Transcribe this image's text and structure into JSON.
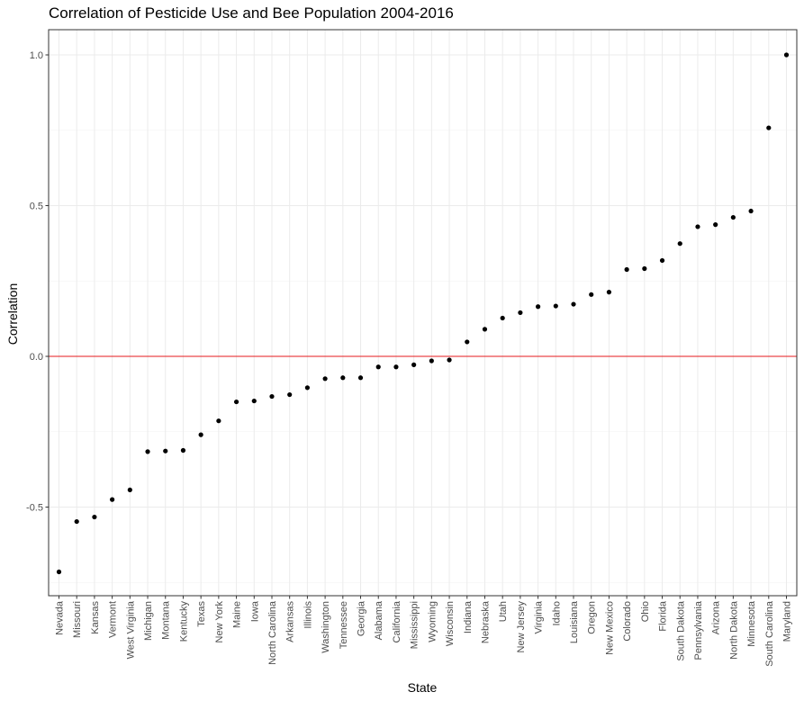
{
  "chart_data": {
    "type": "scatter",
    "title": "Correlation of Pesticide Use and Bee Population 2004-2016",
    "xlabel": "State",
    "ylabel": "Correlation",
    "ylim": [
      -0.8,
      1.1
    ],
    "y_ticks": [
      -0.5,
      0.0,
      0.5,
      1.0
    ],
    "y_tick_labels": [
      "-0.5",
      "0.0",
      "0.5",
      "1.0"
    ],
    "grid": true,
    "reference_line": {
      "y": 0.0,
      "color": "#e41a1c"
    },
    "point_color": "#000000",
    "categories": [
      "Nevada",
      "Missouri",
      "Kansas",
      "Vermont",
      "West Virginia",
      "Michigan",
      "Montana",
      "Kentucky",
      "Texas",
      "New York",
      "Maine",
      "Iowa",
      "North Carolina",
      "Arkansas",
      "Illinois",
      "Washington",
      "Tennessee",
      "Georgia",
      "Alabama",
      "California",
      "Mississippi",
      "Wyoming",
      "Wisconsin",
      "Indiana",
      "Nebraska",
      "Utah",
      "New Jersey",
      "Virginia",
      "Idaho",
      "Louisiana",
      "Oregon",
      "New Mexico",
      "Colorado",
      "Ohio",
      "Florida",
      "South Dakota",
      "Pennsylvania",
      "Arizona",
      "North Dakota",
      "Minnesota",
      "South Carolina",
      "Maryland"
    ],
    "values": [
      -0.715,
      -0.548,
      -0.533,
      -0.475,
      -0.443,
      -0.316,
      -0.314,
      -0.312,
      -0.26,
      -0.214,
      -0.151,
      -0.148,
      -0.133,
      -0.127,
      -0.104,
      -0.074,
      -0.071,
      -0.071,
      -0.035,
      -0.035,
      -0.028,
      -0.015,
      -0.012,
      0.048,
      0.09,
      0.127,
      0.145,
      0.165,
      0.167,
      0.173,
      0.205,
      0.213,
      0.288,
      0.291,
      0.318,
      0.374,
      0.43,
      0.437,
      0.461,
      0.482,
      0.758,
      1.0
    ]
  }
}
